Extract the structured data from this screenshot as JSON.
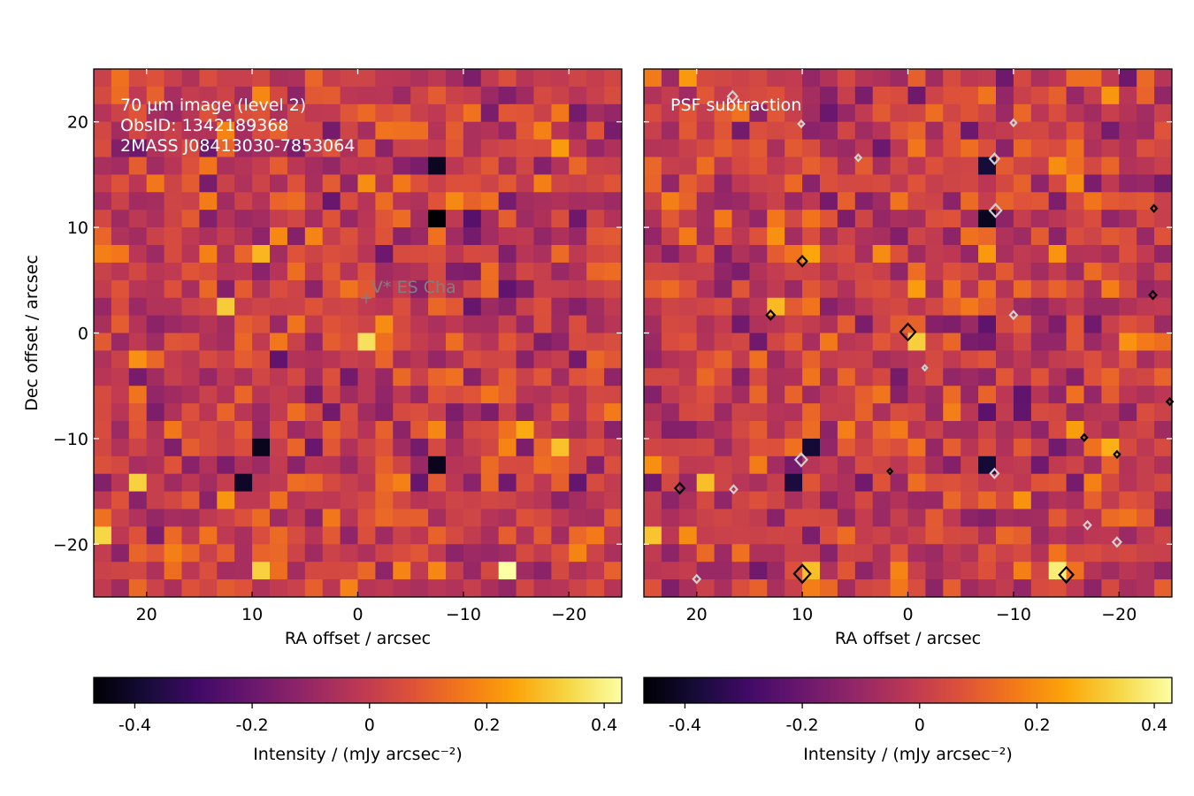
{
  "chart_data": [
    {
      "type": "heatmap",
      "colormap": "inferno",
      "xlabel": "RA offset / arcsec",
      "ylabel": "Dec offset / arcsec",
      "xlim": [
        25,
        -25
      ],
      "ylim": [
        -25,
        25
      ],
      "xticks": [
        20,
        10,
        0,
        -10,
        -20
      ],
      "yticks": [
        -20,
        -10,
        0,
        10,
        20
      ],
      "xtick_labels": [
        "20",
        "10",
        "0",
        "−10",
        "−20"
      ],
      "ytick_labels": [
        "−20",
        "−10",
        "0",
        "10",
        "20"
      ],
      "annotation_lines": [
        "70 µm image (level 2)",
        "ObsID: 1342189368",
        "2MASS J08413030-7853064"
      ],
      "marker": {
        "symbol": "+",
        "label": "V* ES Cha",
        "ra": -0.8,
        "dec": 3.3
      },
      "grid": {
        "cells": 30,
        "cell_arcsec": 1.667
      },
      "hot_pixels": [
        {
          "ra": -8,
          "dec": 11,
          "value": -0.47
        },
        {
          "ra": -8,
          "dec": 16,
          "value": -0.42
        },
        {
          "ra": -8,
          "dec": -13,
          "value": -0.43
        },
        {
          "ra": 0,
          "dec": 0,
          "value": 0.36
        },
        {
          "ra": -14,
          "dec": -22,
          "value": 0.43
        },
        {
          "ra": 10,
          "dec": -22,
          "value": 0.33
        },
        {
          "ra": 13,
          "dec": 2,
          "value": 0.32
        },
        {
          "ra": 10,
          "dec": 7,
          "value": 0.28
        },
        {
          "ra": 20,
          "dec": -14,
          "value": 0.33
        },
        {
          "ra": 24,
          "dec": -19,
          "value": 0.34
        },
        {
          "ra": 10,
          "dec": -11,
          "value": -0.43
        },
        {
          "ra": 11,
          "dec": -14,
          "value": -0.41
        },
        {
          "ra": -16,
          "dec": -9,
          "value": 0.26
        },
        {
          "ra": -19,
          "dec": -11,
          "value": 0.3
        }
      ],
      "colorbar": {
        "label": "Intensity / (mJy arcsec⁻²)",
        "range": [
          -0.47,
          0.43
        ],
        "ticks": [
          -0.4,
          -0.2,
          0,
          0.2,
          0.4
        ],
        "tick_labels": [
          "-0.4",
          "-0.2",
          "0",
          "0.2",
          "0.4"
        ]
      }
    },
    {
      "type": "heatmap",
      "colormap": "inferno",
      "xlabel": "RA offset / arcsec",
      "ylabel": "",
      "xlim": [
        25,
        -25
      ],
      "ylim": [
        -25,
        25
      ],
      "xticks": [
        20,
        10,
        0,
        -10,
        -20
      ],
      "yticks": [
        -20,
        -10,
        0,
        10,
        20
      ],
      "xtick_labels": [
        "20",
        "10",
        "0",
        "−10",
        "−20"
      ],
      "annotation_lines": [
        "PSF subtraction"
      ],
      "grid": {
        "cells": 30,
        "cell_arcsec": 1.667
      },
      "contours_positive": [
        {
          "ra": 10,
          "dec": -22.8,
          "size": 1.4
        },
        {
          "ra": -15,
          "dec": -22.9,
          "size": 1.2
        },
        {
          "ra": 0,
          "dec": 0.1,
          "size": 1.3
        },
        {
          "ra": 10,
          "dec": 6.8,
          "size": 0.8
        },
        {
          "ra": 13,
          "dec": 1.7,
          "size": 0.7
        },
        {
          "ra": 21.6,
          "dec": -14.7,
          "size": 0.8
        },
        {
          "ra": -23.2,
          "dec": 3.6,
          "size": 0.6
        },
        {
          "ra": -23.3,
          "dec": 11.8,
          "size": 0.5
        },
        {
          "ra": -16.7,
          "dec": -9.9,
          "size": 0.5
        },
        {
          "ra": -19.8,
          "dec": -11.5,
          "size": 0.5
        },
        {
          "ra": 1.7,
          "dec": -13.1,
          "size": 0.4
        },
        {
          "ra": -24.8,
          "dec": -6.5,
          "size": 0.5
        }
      ],
      "contours_negative": [
        {
          "ra": -8.3,
          "dec": 11.6,
          "size": 1.0
        },
        {
          "ra": -8.2,
          "dec": 16.5,
          "size": 0.8
        },
        {
          "ra": 10.1,
          "dec": -12,
          "size": 1.0
        },
        {
          "ra": -8.2,
          "dec": -13.3,
          "size": 0.7
        },
        {
          "ra": -17,
          "dec": -18.2,
          "size": 0.6
        },
        {
          "ra": -19.8,
          "dec": -19.8,
          "size": 0.7
        },
        {
          "ra": 20,
          "dec": -23.3,
          "size": 0.6
        },
        {
          "ra": -10,
          "dec": 1.7,
          "size": 0.6
        },
        {
          "ra": 16.6,
          "dec": 22.4,
          "size": 0.8
        },
        {
          "ra": 10.1,
          "dec": 19.8,
          "size": 0.5
        },
        {
          "ra": -10,
          "dec": 19.9,
          "size": 0.5
        },
        {
          "ra": 4.7,
          "dec": 16.6,
          "size": 0.5
        },
        {
          "ra": 16.5,
          "dec": -14.8,
          "size": 0.6
        },
        {
          "ra": -1.6,
          "dec": -3.3,
          "size": 0.4
        }
      ],
      "colorbar": {
        "label": "Intensity / (mJy arcsec⁻²)",
        "range": [
          -0.47,
          0.43
        ],
        "ticks": [
          -0.4,
          -0.2,
          0,
          0.2,
          0.4
        ],
        "tick_labels": [
          "-0.4",
          "-0.2",
          "0",
          "0.2",
          "0.4"
        ]
      }
    }
  ]
}
